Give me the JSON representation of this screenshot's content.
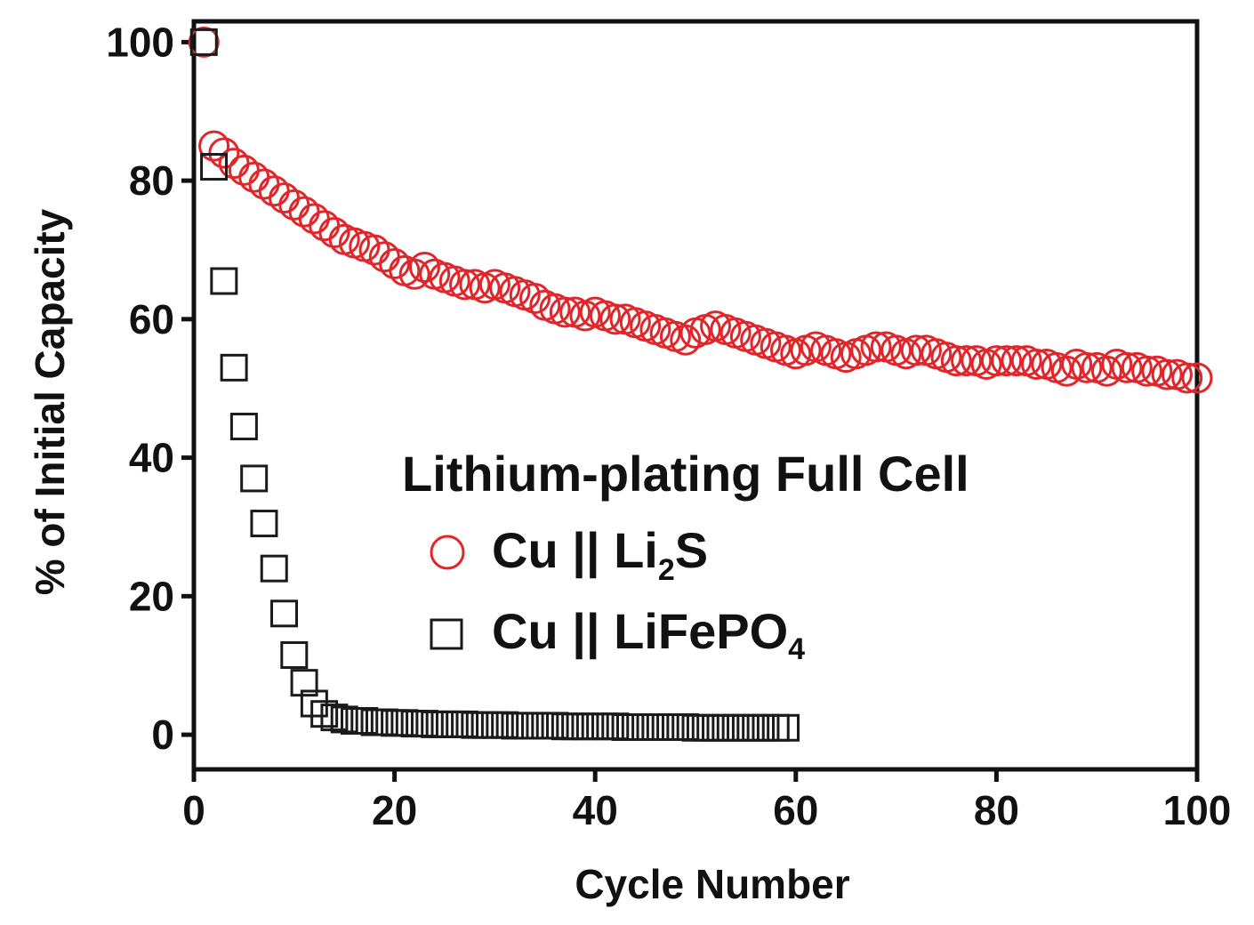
{
  "chart_data": {
    "type": "scatter",
    "title": "",
    "xlabel": "Cycle Number",
    "ylabel": "% of Initial Capacity",
    "xlim": [
      0,
      100
    ],
    "ylim": [
      -5,
      103
    ],
    "xticks": [
      "0",
      "20",
      "40",
      "60",
      "80",
      "100"
    ],
    "yticks": [
      "0",
      "20",
      "40",
      "60",
      "80",
      "100"
    ],
    "xtick_values": [
      0,
      20,
      40,
      60,
      80,
      100
    ],
    "ytick_values": [
      0,
      20,
      40,
      60,
      80,
      100
    ],
    "legend": {
      "title": "Lithium-plating Full Cell",
      "placement": "center-right"
    },
    "series": [
      {
        "name": "Cu || Li2S",
        "label_main": "Cu || Li",
        "label_sub": "2",
        "label_tail": "S",
        "marker": "circle",
        "color": "#e0262b",
        "x": [
          1,
          2,
          3,
          4,
          5,
          6,
          7,
          8,
          9,
          10,
          11,
          12,
          13,
          14,
          15,
          16,
          17,
          18,
          19,
          20,
          21,
          22,
          23,
          24,
          25,
          26,
          27,
          28,
          29,
          30,
          31,
          32,
          33,
          34,
          35,
          36,
          37,
          38,
          39,
          40,
          41,
          42,
          43,
          44,
          45,
          46,
          47,
          48,
          49,
          50,
          51,
          52,
          53,
          54,
          55,
          56,
          57,
          58,
          59,
          60,
          61,
          62,
          63,
          64,
          65,
          66,
          67,
          68,
          69,
          70,
          71,
          72,
          73,
          74,
          75,
          76,
          77,
          78,
          79,
          80,
          81,
          82,
          83,
          84,
          85,
          86,
          87,
          88,
          89,
          90,
          91,
          92,
          93,
          94,
          95,
          96,
          97,
          98,
          99,
          100
        ],
        "values": [
          100,
          85,
          84,
          82.5,
          81.5,
          80.5,
          79.5,
          78.5,
          77.5,
          76.5,
          75.5,
          74.5,
          73.5,
          72.5,
          71.5,
          71,
          70.5,
          70,
          69,
          68,
          67,
          66.5,
          67.5,
          66.5,
          66,
          65.5,
          65,
          65,
          64.5,
          65,
          64.5,
          64,
          63.5,
          63,
          62,
          61.5,
          61,
          61,
          60.5,
          61,
          60.5,
          60,
          60,
          59.5,
          59,
          58.5,
          58,
          57.5,
          57,
          58,
          58.5,
          59,
          58.5,
          58,
          57.5,
          57,
          56.5,
          56,
          55.5,
          55,
          55.5,
          56,
          55.5,
          55,
          54.5,
          55,
          55.5,
          56,
          56,
          55.5,
          55,
          55.5,
          55.5,
          55,
          54.5,
          54,
          54,
          54,
          53.5,
          54,
          54,
          54,
          54,
          53.5,
          53.5,
          53,
          52.5,
          53.5,
          53,
          53,
          52.5,
          53.5,
          53,
          53,
          52.5,
          52.5,
          52,
          52,
          51.5,
          51.5
        ]
      },
      {
        "name": "Cu || LiFePO4",
        "label_main": "Cu || LiFePO",
        "label_sub": "4",
        "label_tail": "",
        "marker": "square",
        "color": "#1a1a1a",
        "x": [
          1,
          2,
          3,
          4,
          5,
          6,
          7,
          8,
          9,
          10,
          11,
          12,
          13,
          14,
          15,
          16,
          17,
          18,
          19,
          20,
          21,
          22,
          23,
          24,
          25,
          26,
          27,
          28,
          29,
          30,
          31,
          32,
          33,
          34,
          35,
          36,
          37,
          38,
          39,
          40,
          41,
          42,
          43,
          44,
          45,
          46,
          47,
          48,
          49,
          50,
          51,
          52,
          53,
          54,
          55,
          56,
          57,
          58,
          59
        ],
        "values": [
          100,
          82,
          65.5,
          53,
          44.5,
          37,
          30.5,
          24,
          17.5,
          11.5,
          7.5,
          4.5,
          3,
          2.5,
          2.2,
          2,
          2,
          1.8,
          1.8,
          1.7,
          1.7,
          1.6,
          1.6,
          1.5,
          1.5,
          1.5,
          1.5,
          1.4,
          1.4,
          1.4,
          1.4,
          1.3,
          1.3,
          1.3,
          1.3,
          1.3,
          1.2,
          1.2,
          1.2,
          1.2,
          1.2,
          1.2,
          1.1,
          1.1,
          1.1,
          1.1,
          1.1,
          1.1,
          1.1,
          1.0,
          1.0,
          1.0,
          1.0,
          1.0,
          1.0,
          1.0,
          1.0,
          1.0,
          1.0
        ]
      }
    ]
  }
}
